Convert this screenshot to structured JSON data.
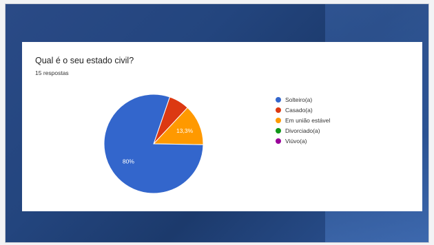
{
  "chart_data": {
    "type": "pie",
    "title": "Qual é o seu estado civil?",
    "subtitle": "15 respostas",
    "categories": [
      "Solteiro(a)",
      "Casado(a)",
      "Em união estável",
      "Divorciado(a)",
      "Viúvo(a)"
    ],
    "values": [
      80,
      6.7,
      13.3,
      0,
      0
    ],
    "slice_labels": [
      "80%",
      "",
      "13,3%",
      "",
      ""
    ],
    "colors": [
      "#3366cc",
      "#dc3912",
      "#ff9900",
      "#109618",
      "#990099"
    ],
    "legend": "right"
  }
}
